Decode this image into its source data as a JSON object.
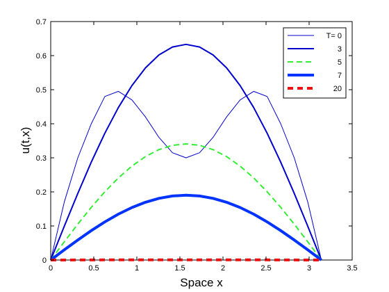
{
  "chart_data": {
    "type": "line",
    "title": "",
    "xlabel": "Space x",
    "ylabel": "u(t,x)",
    "xlim": [
      0,
      3.5
    ],
    "ylim": [
      0,
      0.7
    ],
    "xticks": [
      0,
      0.5,
      1,
      1.5,
      2,
      2.5,
      3,
      3.5
    ],
    "yticks": [
      0,
      0.1,
      0.2,
      0.3,
      0.4,
      0.5,
      0.6,
      0.7
    ],
    "xtick_labels": [
      "0",
      "0.5",
      "1",
      "1.5",
      "2",
      "2.5",
      "3",
      "3.5"
    ],
    "ytick_labels": [
      "0",
      "0.1",
      "0.2",
      "0.3",
      "0.4",
      "0.5",
      "0.6",
      "0.7"
    ],
    "grid": false,
    "legend_position": "top-right",
    "x": [
      0,
      0.1571,
      0.3142,
      0.4712,
      0.6283,
      0.7854,
      0.9425,
      1.0996,
      1.2566,
      1.4137,
      1.5708,
      1.7279,
      1.885,
      2.042,
      2.1991,
      2.3562,
      2.5133,
      2.6704,
      2.8274,
      2.9845,
      3.1416
    ],
    "series": [
      {
        "name": "T= 0",
        "color": "#0000cc",
        "style": "solid",
        "weight": "thin",
        "values": [
          0,
          0.17,
          0.3,
          0.4,
          0.48,
          0.495,
          0.47,
          0.42,
          0.36,
          0.315,
          0.3,
          0.315,
          0.36,
          0.42,
          0.47,
          0.495,
          0.48,
          0.4,
          0.3,
          0.17,
          0
        ]
      },
      {
        "name": "3",
        "color": "#0000cc",
        "style": "solid",
        "weight": "medium",
        "values": [
          0,
          0.099,
          0.1956,
          0.2873,
          0.372,
          0.4476,
          0.5121,
          0.564,
          0.602,
          0.6253,
          0.6331,
          0.6253,
          0.602,
          0.564,
          0.5121,
          0.4476,
          0.372,
          0.2873,
          0.1956,
          0.099,
          0
        ]
      },
      {
        "name": "5",
        "color": "#33ee33",
        "style": "dashed",
        "weight": "medium",
        "values": [
          0,
          0.0533,
          0.1053,
          0.1547,
          0.2003,
          0.241,
          0.2757,
          0.3037,
          0.3241,
          0.3367,
          0.3409,
          0.3367,
          0.3241,
          0.3037,
          0.2757,
          0.241,
          0.2003,
          0.1547,
          0.1053,
          0.0533,
          0
        ]
      },
      {
        "name": "7",
        "color": "#0033ff",
        "style": "solid",
        "weight": "thick",
        "values": [
          0,
          0.0298,
          0.0588,
          0.0864,
          0.1118,
          0.1346,
          0.154,
          0.1696,
          0.181,
          0.188,
          0.1903,
          0.188,
          0.181,
          0.1696,
          0.154,
          0.1346,
          0.1118,
          0.0864,
          0.0588,
          0.0298,
          0
        ]
      },
      {
        "name": "20",
        "color": "#ee1111",
        "style": "dashed",
        "weight": "thick",
        "values": [
          0,
          0.0001,
          0.0002,
          0.0003,
          0.0004,
          0.0005,
          0.0005,
          0.0006,
          0.0006,
          0.0006,
          0.0006,
          0.0006,
          0.0006,
          0.0006,
          0.0005,
          0.0005,
          0.0004,
          0.0003,
          0.0002,
          0.0001,
          0
        ]
      }
    ]
  }
}
